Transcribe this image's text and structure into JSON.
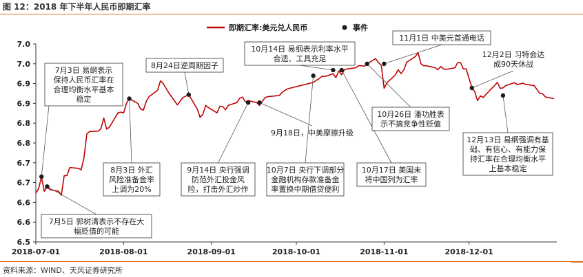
{
  "header": {
    "title": "图 12：2018 年下半年人民币即期汇率"
  },
  "footer": {
    "source": "资料来源：WIND、天风证券研究所"
  },
  "colors": {
    "accent": "#e06a1b",
    "line": "#c00000",
    "marker": "#1a1a1a"
  },
  "chart_data": {
    "type": "line",
    "title": "",
    "xlabel": "",
    "ylabel": "",
    "ylim": [
      6.5,
      7.0
    ],
    "y_ticks": [
      "6.5",
      "6.6",
      "6.6",
      "6.7",
      "6.7",
      "6.8",
      "6.8",
      "6.9",
      "6.9",
      "7.0",
      "7.0"
    ],
    "x_ticks": [
      "2018-07-01",
      "2018-08-01",
      "2018-09-01",
      "2018-10-01",
      "2018-11-01",
      "2018-12-01"
    ],
    "x_range": [
      "2018-07-01",
      "2019-01-01"
    ],
    "grid": false,
    "legend_position": "top",
    "series": [
      {
        "name": "即期汇率:美元兑人民币",
        "points": [
          [
            "2018-07-01",
            6.623
          ],
          [
            "2018-07-02",
            6.635
          ],
          [
            "2018-07-03",
            6.664
          ],
          [
            "2018-07-04",
            6.628
          ],
          [
            "2018-07-05",
            6.64
          ],
          [
            "2018-07-06",
            6.632
          ],
          [
            "2018-07-09",
            6.628
          ],
          [
            "2018-07-10",
            6.618
          ],
          [
            "2018-07-11",
            6.667
          ],
          [
            "2018-07-12",
            6.668
          ],
          [
            "2018-07-13",
            6.688
          ],
          [
            "2018-07-16",
            6.686
          ],
          [
            "2018-07-17",
            6.682
          ],
          [
            "2018-07-18",
            6.712
          ],
          [
            "2018-07-19",
            6.773
          ],
          [
            "2018-07-20",
            6.779
          ],
          [
            "2018-07-23",
            6.78
          ],
          [
            "2018-07-24",
            6.786
          ],
          [
            "2018-07-25",
            6.813
          ],
          [
            "2018-07-26",
            6.785
          ],
          [
            "2018-07-27",
            6.79
          ],
          [
            "2018-07-30",
            6.826
          ],
          [
            "2018-07-31",
            6.828
          ],
          [
            "2018-08-01",
            6.826
          ],
          [
            "2018-08-02",
            6.85
          ],
          [
            "2018-08-03",
            6.862
          ],
          [
            "2018-08-06",
            6.85
          ],
          [
            "2018-08-07",
            6.836
          ],
          [
            "2018-08-08",
            6.833
          ],
          [
            "2018-08-09",
            6.855
          ],
          [
            "2018-08-10",
            6.867
          ],
          [
            "2018-08-13",
            6.883
          ],
          [
            "2018-08-14",
            6.907
          ],
          [
            "2018-08-15",
            6.9
          ],
          [
            "2018-08-16",
            6.888
          ],
          [
            "2018-08-17",
            6.876
          ],
          [
            "2018-08-20",
            6.846
          ],
          [
            "2018-08-21",
            6.856
          ],
          [
            "2018-08-22",
            6.865
          ],
          [
            "2018-08-24",
            6.872
          ],
          [
            "2018-08-27",
            6.836
          ],
          [
            "2018-08-28",
            6.815
          ],
          [
            "2018-08-29",
            6.822
          ],
          [
            "2018-08-30",
            6.845
          ],
          [
            "2018-08-31",
            6.839
          ],
          [
            "2018-09-03",
            6.826
          ],
          [
            "2018-09-04",
            6.843
          ],
          [
            "2018-09-05",
            6.842
          ],
          [
            "2018-09-06",
            6.834
          ],
          [
            "2018-09-07",
            6.845
          ],
          [
            "2018-09-10",
            6.852
          ],
          [
            "2018-09-11",
            6.863
          ],
          [
            "2018-09-12",
            6.866
          ],
          [
            "2018-09-13",
            6.854
          ],
          [
            "2018-09-14",
            6.857
          ],
          [
            "2018-09-17",
            6.852
          ],
          [
            "2018-09-18",
            6.845
          ],
          [
            "2018-09-19",
            6.855
          ],
          [
            "2018-09-20",
            6.865
          ],
          [
            "2018-09-21",
            6.867
          ],
          [
            "2018-09-25",
            6.87
          ],
          [
            "2018-09-26",
            6.878
          ],
          [
            "2018-09-27",
            6.883
          ],
          [
            "2018-09-28",
            6.887
          ],
          [
            "2018-10-07",
            6.903
          ],
          [
            "2018-10-08",
            6.908
          ],
          [
            "2018-10-09",
            6.912
          ],
          [
            "2018-10-10",
            6.918
          ],
          [
            "2018-10-11",
            6.918
          ],
          [
            "2018-10-12",
            6.92
          ],
          [
            "2018-10-14",
            6.925
          ],
          [
            "2018-10-15",
            6.915
          ],
          [
            "2018-10-16",
            6.932
          ],
          [
            "2018-10-17",
            6.922
          ],
          [
            "2018-10-18",
            6.935
          ],
          [
            "2018-10-19",
            6.937
          ],
          [
            "2018-10-22",
            6.94
          ],
          [
            "2018-10-23",
            6.945
          ],
          [
            "2018-10-24",
            6.945
          ],
          [
            "2018-10-25",
            6.944
          ],
          [
            "2018-10-26",
            6.95
          ],
          [
            "2018-10-29",
            6.963
          ],
          [
            "2018-10-30",
            6.953
          ],
          [
            "2018-10-31",
            6.946
          ],
          [
            "2018-11-01",
            6.888
          ],
          [
            "2018-11-02",
            6.902
          ],
          [
            "2018-11-05",
            6.922
          ],
          [
            "2018-11-06",
            6.935
          ],
          [
            "2018-11-07",
            6.925
          ],
          [
            "2018-11-08",
            6.935
          ],
          [
            "2018-11-09",
            6.954
          ],
          [
            "2018-11-12",
            6.968
          ],
          [
            "2018-11-13",
            6.978
          ],
          [
            "2018-11-14",
            6.95
          ],
          [
            "2018-11-15",
            6.945
          ],
          [
            "2018-11-16",
            6.945
          ],
          [
            "2018-11-19",
            6.94
          ],
          [
            "2018-11-20",
            6.935
          ],
          [
            "2018-11-21",
            6.943
          ],
          [
            "2018-11-22",
            6.937
          ],
          [
            "2018-11-23",
            6.936
          ],
          [
            "2018-11-26",
            6.94
          ],
          [
            "2018-11-27",
            6.953
          ],
          [
            "2018-11-28",
            6.953
          ],
          [
            "2018-11-29",
            6.937
          ],
          [
            "2018-11-30",
            6.937
          ],
          [
            "2018-12-02",
            6.89
          ],
          [
            "2018-12-03",
            6.88
          ],
          [
            "2018-12-04",
            6.857
          ],
          [
            "2018-12-05",
            6.869
          ],
          [
            "2018-12-06",
            6.865
          ],
          [
            "2018-12-07",
            6.873
          ],
          [
            "2018-12-10",
            6.895
          ],
          [
            "2018-12-11",
            6.903
          ],
          [
            "2018-12-12",
            6.888
          ],
          [
            "2018-12-13",
            6.889
          ],
          [
            "2018-12-14",
            6.895
          ],
          [
            "2018-12-17",
            6.902
          ],
          [
            "2018-12-18",
            6.898
          ],
          [
            "2018-12-19",
            6.899
          ],
          [
            "2018-12-20",
            6.901
          ],
          [
            "2018-12-21",
            6.898
          ],
          [
            "2018-12-24",
            6.895
          ],
          [
            "2018-12-25",
            6.885
          ],
          [
            "2018-12-26",
            6.875
          ],
          [
            "2018-12-27",
            6.874
          ],
          [
            "2018-12-28",
            6.866
          ],
          [
            "2018-12-31",
            6.862
          ]
        ]
      },
      {
        "name": "事件",
        "type": "scatter"
      }
    ],
    "events": [
      {
        "date": "2018-07-03",
        "value": 6.665,
        "lines": [
          "7月3日 易纲表示",
          "保持人民币汇率在",
          "合理均衡水平基本",
          "稳定"
        ]
      },
      {
        "date": "2018-07-05",
        "value": 6.64,
        "lines": [
          "7月5日 郭树清表示不存在大",
          "幅贬值的可能"
        ]
      },
      {
        "date": "2018-08-03",
        "value": 6.862,
        "lines": [
          "8月3日 外汇",
          "风险准备金率",
          "上调为20%"
        ]
      },
      {
        "date": "2018-08-24",
        "value": 6.872,
        "lines": [
          "8月24日逆周期因子"
        ]
      },
      {
        "date": "2018-09-14",
        "value": 6.852,
        "lines": [
          "9月14日 央行强调",
          "防范外汇投金风",
          "险，打击外汇炒作"
        ]
      },
      {
        "date": "2018-09-18",
        "value": 6.852,
        "lines": [
          "9月18日，中美摩擦升级"
        ],
        "boxed": false
      },
      {
        "date": "2018-10-07",
        "value": 6.92,
        "lines": [
          "10月7日 央行下调部分",
          "金融机构存款准备金",
          "率置换中期借贷便利"
        ]
      },
      {
        "date": "2018-10-14",
        "value": 6.934,
        "lines": [
          "10月14日 易纲表示利率水平",
          "合适、工具充足"
        ]
      },
      {
        "date": "2018-10-17",
        "value": 6.934,
        "lines": [
          "10月17日 美国未",
          "将中国列为汇率"
        ]
      },
      {
        "date": "2018-10-26",
        "value": 6.95,
        "lines": [
          "10月26日 潘功胜表",
          "示不搞竞争性贬值"
        ]
      },
      {
        "date": "2018-11-01",
        "value": 6.95,
        "lines": [
          "11月1日 中美元首通电话"
        ]
      },
      {
        "date": "2018-12-02",
        "value": 6.889,
        "lines": [
          "12月2日 习特会达",
          "成90天休战"
        ],
        "boxed": false
      },
      {
        "date": "2018-12-13",
        "value": 6.87,
        "lines": [
          "12月13日 易纲强调有基",
          "础、有信心、有能力保",
          "持汇率在合理均衡水平",
          "上基本稳定"
        ]
      }
    ]
  }
}
